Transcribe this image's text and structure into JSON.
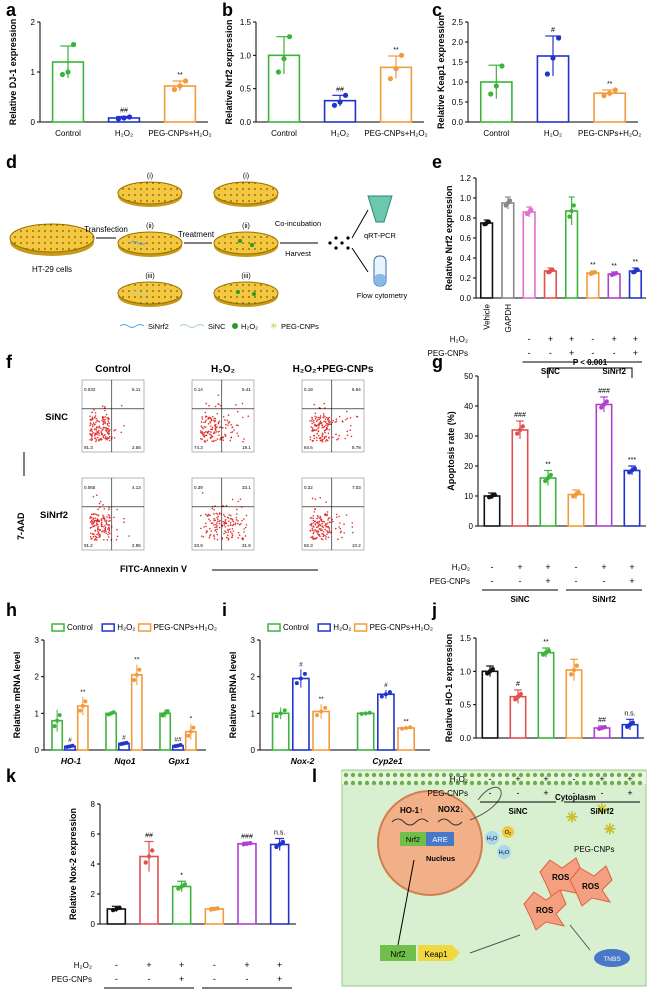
{
  "panel_labels": {
    "a": "a",
    "b": "b",
    "c": "c",
    "d": "d",
    "e": "e",
    "f": "f",
    "g": "g",
    "h": "h",
    "i": "i",
    "j": "j",
    "k": "k",
    "l": "l"
  },
  "chart_data": [
    {
      "id": "a",
      "type": "bar",
      "ylabel": "Relative DJ-1 expression",
      "categories": [
        "Control",
        "H₂O₂",
        "PEG-CNPs+H₂O₂"
      ],
      "values": [
        1.2,
        0.08,
        0.72
      ],
      "errors": [
        0.32,
        0.03,
        0.1
      ],
      "points": [
        [
          0.95,
          1.0,
          1.55
        ],
        [
          0.06,
          0.08,
          0.1
        ],
        [
          0.65,
          0.72,
          0.82
        ]
      ],
      "colors": [
        "#3cb43c",
        "#2233cc",
        "#f39a3c"
      ],
      "ylim": [
        0,
        2
      ],
      "yticks": [
        "0",
        "1",
        "2"
      ],
      "ytickvals": [
        0,
        1,
        2
      ],
      "annotations": [
        "",
        "##",
        "**"
      ]
    },
    {
      "id": "b",
      "type": "bar",
      "ylabel": "Relative Nrf2 expression",
      "categories": [
        "Control",
        "H₂O₂",
        "PEG-CNPs+H₂O₂"
      ],
      "values": [
        1.0,
        0.32,
        0.82
      ],
      "errors": [
        0.28,
        0.08,
        0.17
      ],
      "points": [
        [
          0.75,
          0.95,
          1.28
        ],
        [
          0.25,
          0.3,
          0.4
        ],
        [
          0.65,
          0.8,
          1.0
        ]
      ],
      "colors": [
        "#3cb43c",
        "#2233cc",
        "#f39a3c"
      ],
      "ylim": [
        0,
        1.5
      ],
      "yticks": [
        "0.0",
        "0.5",
        "1.0",
        "1.5"
      ],
      "ytickvals": [
        0,
        0.5,
        1.0,
        1.5
      ],
      "annotations": [
        "",
        "##",
        "**"
      ]
    },
    {
      "id": "c",
      "type": "bar",
      "ylabel": "Relative Keap1 expression",
      "categories": [
        "Control",
        "H₂O₂",
        "PEG-CNPs+H₂O₂"
      ],
      "values": [
        1.0,
        1.65,
        0.72
      ],
      "errors": [
        0.42,
        0.5,
        0.08
      ],
      "points": [
        [
          0.7,
          0.9,
          1.4
        ],
        [
          1.2,
          1.6,
          2.1
        ],
        [
          0.66,
          0.72,
          0.8
        ]
      ],
      "colors": [
        "#3cb43c",
        "#2233cc",
        "#f39a3c"
      ],
      "ylim": [
        0,
        2.5
      ],
      "yticks": [
        "0.0",
        "0.5",
        "1.0",
        "1.5",
        "2.0",
        "2.5"
      ],
      "ytickvals": [
        0,
        0.5,
        1.0,
        1.5,
        2.0,
        2.5
      ],
      "annotations": [
        "",
        "#",
        "**"
      ]
    },
    {
      "id": "e",
      "type": "bar",
      "ylabel": "Relative Nrf2 expression",
      "categories": [
        "Vehicle",
        "GAPDH",
        "",
        "",
        "",
        "",
        "",
        ""
      ],
      "values": [
        0.75,
        0.95,
        0.86,
        0.27,
        0.87,
        0.25,
        0.24,
        0.27
      ],
      "errors": [
        0.03,
        0.06,
        0.05,
        0.03,
        0.14,
        0.02,
        0.02,
        0.03
      ],
      "colors": [
        "#111111",
        "#888888",
        "#e070d0",
        "#e05050",
        "#3cb43c",
        "#f39a3c",
        "#b040d0",
        "#2233cc"
      ],
      "ylim": [
        0,
        1.2
      ],
      "yticks": [
        "0.0",
        "0.2",
        "0.4",
        "0.6",
        "0.8",
        "1.0",
        "1.2"
      ],
      "ytickvals": [
        0,
        0.2,
        0.4,
        0.6,
        0.8,
        1.0,
        1.2
      ],
      "annotations": [
        "",
        "",
        "",
        "",
        "",
        "**",
        "**",
        "**"
      ],
      "h2o2_row": [
        "",
        "",
        "-",
        "+",
        "+",
        "-",
        "+",
        "+"
      ],
      "peg_row": [
        "",
        "",
        "-",
        "-",
        "+",
        "-",
        "-",
        "+"
      ],
      "row_labels": [
        "H₂O₂",
        "PEG-CNPs"
      ],
      "groups": [
        "SiNC",
        "SiNrf2"
      ]
    },
    {
      "id": "g",
      "type": "bar",
      "ylabel": "Apoptosis rate (%)",
      "categories": [
        "",
        "",
        "",
        "",
        "",
        ""
      ],
      "values": [
        10,
        32,
        16,
        10.5,
        40.5,
        18.5
      ],
      "errors": [
        1,
        3,
        2.5,
        1.5,
        2.5,
        1.5
      ],
      "colors": [
        "#111111",
        "#e05050",
        "#3cb43c",
        "#f39a3c",
        "#b040d0",
        "#2233cc"
      ],
      "ylim": [
        0,
        50
      ],
      "yticks": [
        "0",
        "10",
        "20",
        "30",
        "40",
        "50"
      ],
      "ytickvals": [
        0,
        10,
        20,
        30,
        40,
        50
      ],
      "annotations": [
        "",
        "###",
        "**",
        "",
        "###",
        "***"
      ],
      "h2o2_row": [
        "-",
        "+",
        "+",
        "-",
        "+",
        "+"
      ],
      "peg_row": [
        "-",
        "-",
        "+",
        "-",
        "-",
        "+"
      ],
      "row_labels": [
        "H₂O₂",
        "PEG-CNPs"
      ],
      "groups": [
        "SiNC",
        "SiNrf2"
      ],
      "bracket": "P < 0.001"
    },
    {
      "id": "h",
      "type": "grouped-bar",
      "ylabel": "Relative mRNA level",
      "categories": [
        "HO-1",
        "Nqo1",
        "Gpx1"
      ],
      "series": [
        {
          "name": "Control",
          "values": [
            0.8,
            1.0,
            1.0
          ],
          "errors": [
            0.3,
            0.06,
            0.12
          ],
          "color": "#3cb43c"
        },
        {
          "name": "H₂O₂",
          "values": [
            0.1,
            0.18,
            0.12
          ],
          "errors": [
            0.03,
            0.03,
            0.03
          ],
          "color": "#2233cc"
        },
        {
          "name": "PEG-CNPs+H₂O₂",
          "values": [
            1.2,
            2.05,
            0.5
          ],
          "errors": [
            0.25,
            0.28,
            0.22
          ],
          "color": "#f39a3c"
        }
      ],
      "ylim": [
        0,
        3
      ],
      "yticks": [
        "0",
        "1",
        "2",
        "3"
      ],
      "ytickvals": [
        0,
        1,
        2,
        3
      ],
      "annotations": [
        [
          "",
          "#",
          "**"
        ],
        [
          "",
          "#",
          "**"
        ],
        [
          "",
          "##",
          "*"
        ]
      ]
    },
    {
      "id": "i",
      "type": "grouped-bar",
      "ylabel": "Relative mRNA level",
      "categories": [
        "Nox-2",
        "Cyp2e1"
      ],
      "series": [
        {
          "name": "Control",
          "values": [
            1.0,
            1.0
          ],
          "errors": [
            0.16,
            0.03
          ],
          "color": "#3cb43c"
        },
        {
          "name": "H₂O₂",
          "values": [
            1.95,
            1.52
          ],
          "errors": [
            0.25,
            0.12
          ],
          "color": "#2233cc"
        },
        {
          "name": "PEG-CNPs+H₂O₂",
          "values": [
            1.05,
            0.6
          ],
          "errors": [
            0.2,
            0.04
          ],
          "color": "#f39a3c"
        }
      ],
      "ylim": [
        0,
        3
      ],
      "yticks": [
        "0",
        "1",
        "2",
        "3"
      ],
      "ytickvals": [
        0,
        1,
        2,
        3
      ],
      "annotations": [
        [
          "",
          "#",
          "**"
        ],
        [
          "",
          "#",
          "**"
        ]
      ]
    },
    {
      "id": "j",
      "type": "bar",
      "ylabel": "Relative HO-1 expression",
      "categories": [
        "",
        "",
        "",
        "",
        "",
        ""
      ],
      "values": [
        1.0,
        0.62,
        1.28,
        1.02,
        0.15,
        0.2
      ],
      "errors": [
        0.08,
        0.1,
        0.07,
        0.16,
        0.03,
        0.08
      ],
      "colors": [
        "#111111",
        "#e05050",
        "#3cb43c",
        "#f39a3c",
        "#b040d0",
        "#2233cc"
      ],
      "ylim": [
        0,
        1.5
      ],
      "yticks": [
        "0.0",
        "0.5",
        "1.0",
        "1.5"
      ],
      "ytickvals": [
        0,
        0.5,
        1.0,
        1.5
      ],
      "annotations": [
        "",
        "#",
        "**",
        "",
        "##",
        "n.s."
      ],
      "h2o2_row": [
        "-",
        "+",
        "+",
        "-",
        "+",
        "+"
      ],
      "peg_row": [
        "-",
        "-",
        "+",
        "-",
        "-",
        "+"
      ],
      "row_labels": [
        "H₂O₂",
        "PEG-CNPs"
      ],
      "groups": [
        "SiNC",
        "SiNrf2"
      ]
    },
    {
      "id": "k",
      "type": "bar",
      "ylabel": "Relative Nox-2 expression",
      "categories": [
        "",
        "",
        "",
        "",
        "",
        ""
      ],
      "values": [
        1.0,
        4.5,
        2.5,
        1.0,
        5.35,
        5.3
      ],
      "errors": [
        0.18,
        1.0,
        0.35,
        0.1,
        0.1,
        0.4
      ],
      "colors": [
        "#111111",
        "#e05050",
        "#3cb43c",
        "#f39a3c",
        "#b040d0",
        "#2233cc"
      ],
      "ylim": [
        0,
        8
      ],
      "yticks": [
        "0",
        "2",
        "4",
        "6",
        "8"
      ],
      "ytickvals": [
        0,
        2,
        4,
        6,
        8
      ],
      "annotations": [
        "",
        "##",
        "*",
        "",
        "###",
        "n.s."
      ],
      "h2o2_row": [
        "-",
        "+",
        "+",
        "-",
        "+",
        "+"
      ],
      "peg_row": [
        "-",
        "-",
        "+",
        "-",
        "-",
        "+"
      ],
      "row_labels": [
        "H₂O₂",
        "PEG-CNPs"
      ],
      "groups": [
        "SiNC",
        "SiNrf2"
      ]
    }
  ],
  "schematic_d": {
    "cells": "HT-29 cells",
    "transfection": "Transfection",
    "treatment": "Treatment",
    "co_incubation": "Co-incubation",
    "harvest": "Harvest",
    "qrt": "qRT-PCR",
    "flow": "Flow cytometry",
    "dish_labels": [
      "(i)",
      "(ii)",
      "(iii)"
    ],
    "legend": [
      "SiNrf2",
      "SiNC",
      "H₂O₂",
      "PEG-CNPs"
    ]
  },
  "flow_f": {
    "columns": [
      "Control",
      "H₂O₂",
      "H₂O₂+PEG-CNPs"
    ],
    "rows": [
      "SiNC",
      "SiNrf2"
    ],
    "xlabel": "FITC-Annexin V",
    "ylabel": "7-AAD",
    "quadrants": [
      [
        [
          "0.032",
          "6.11",
          "91.3",
          "2.56"
        ],
        [
          "0.14",
          "6.41",
          "74.3",
          "19.1"
        ],
        [
          "0.18",
          "6.84",
          "84.6",
          "8.78"
        ]
      ],
      [
        [
          "0.065",
          "4.13",
          "91.2",
          "2.95"
        ],
        [
          "0.39",
          "33.1",
          "33.9",
          "31.8"
        ],
        [
          "0.32",
          "7.03",
          "82.3",
          "10.2"
        ]
      ]
    ]
  },
  "diagram_l": {
    "cytoplasm": "Cytoplasm",
    "nucleus": "Nucleus",
    "ho1": "HO-1↑",
    "nox2": "NOX2↓",
    "nrf2": "Nrf2",
    "are": "ARE",
    "keap1": "Keap1",
    "ros": "ROS",
    "peg": "PEG-CNPs",
    "tnbs": "TNBS",
    "h2o": "H₂O",
    "o2": "O₂"
  }
}
